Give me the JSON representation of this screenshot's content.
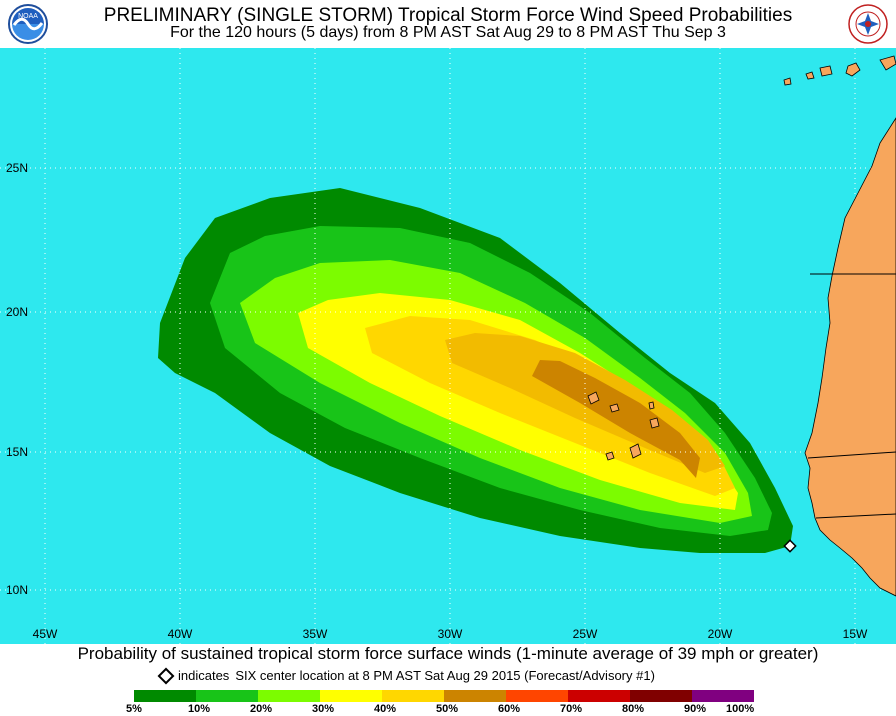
{
  "header": {
    "title": "PRELIMINARY (SINGLE STORM) Tropical Storm Force Wind Speed Probabilities",
    "subtitle": "For the 120 hours (5 days) from 8 PM AST Sat Aug 29 to 8 PM AST Thu Sep 3",
    "left_logo_text": "NOAA",
    "right_logo_text": "NATIONAL WEATHER SERVICE"
  },
  "map": {
    "ocean_color": "#2ee8ee",
    "land_color": "#f7a65c",
    "lat_labels": [
      "25N",
      "20N",
      "15N",
      "10N"
    ],
    "lon_labels": [
      "45W",
      "40W",
      "35W",
      "30W",
      "25W",
      "20W",
      "15W"
    ],
    "center_marker_icon": "diamond-icon"
  },
  "footer": {
    "main": "Probability of sustained tropical storm force surface winds (1-minute average of 39 mph or greater)",
    "note_prefix": "indicates",
    "note_text": "SIX center location at 8 PM AST Sat Aug 29 2015 (Forecast/Advisory #1)"
  },
  "legend": {
    "colors": [
      "#008a00",
      "#18c418",
      "#7cfc00",
      "#ffff00",
      "#ffd700",
      "#cc8400",
      "#ff4500",
      "#cc0000",
      "#800000",
      "#800080"
    ],
    "labels": [
      "5%",
      "10%",
      "20%",
      "30%",
      "40%",
      "50%",
      "60%",
      "70%",
      "80%",
      "90%",
      "100%"
    ]
  }
}
